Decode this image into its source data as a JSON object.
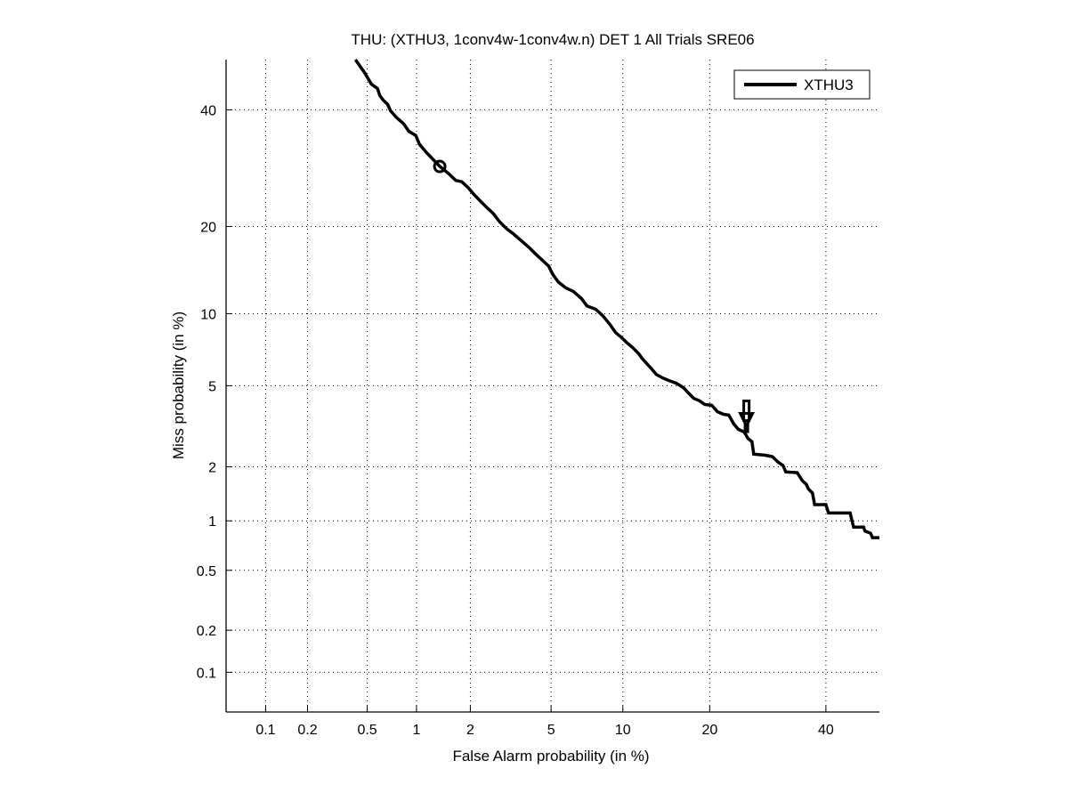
{
  "chart_data": {
    "type": "line",
    "title": "THU: (XTHU3, 1conv4w-1conv4w.n) DET 1 All Trials SRE06",
    "xlabel": "False Alarm probability (in %)",
    "ylabel": "Miss probability (in %)",
    "scale": "normal-deviate",
    "xlim": [
      0.05,
      50.7
    ],
    "ylim": [
      0.05,
      50
    ],
    "grid": true,
    "x_ticks": [
      0.1,
      0.2,
      0.5,
      1,
      2,
      5,
      10,
      20,
      40
    ],
    "x_tick_labels": [
      "0.1",
      "0.2",
      "0.5",
      "1",
      "2",
      "5",
      "10",
      "20",
      "40"
    ],
    "y_ticks": [
      0.1,
      0.2,
      0.5,
      1,
      2,
      5,
      10,
      20,
      40
    ],
    "y_tick_labels": [
      "0.1",
      "0.2",
      "0.5",
      "1",
      "2",
      "5",
      "10",
      "20",
      "40"
    ],
    "legend": {
      "position": "top-right",
      "entries": [
        "XTHU3"
      ]
    },
    "line_color": "#000000",
    "series": [
      {
        "name": "XTHU3",
        "x": [
          0.42,
          0.48,
          0.53,
          0.58,
          0.6,
          0.63,
          0.67,
          0.7,
          0.76,
          0.84,
          0.9,
          0.99,
          1.04,
          1.14,
          1.25,
          1.36,
          1.52,
          1.67,
          1.8,
          1.95,
          2.08,
          2.24,
          2.44,
          2.63,
          2.83,
          3.07,
          3.33,
          3.61,
          3.94,
          4.26,
          4.64,
          4.87,
          5.1,
          5.39,
          5.8,
          6.28,
          6.8,
          7.17,
          7.8,
          8.34,
          8.91,
          9.37,
          9.82,
          10.4,
          10.9,
          11.5,
          11.8,
          12.3,
          12.8,
          13.3,
          14.0,
          14.7,
          15.6,
          16.5,
          17.0,
          17.8,
          18.6,
          19.3,
          20.3,
          21.1,
          22.0,
          22.8,
          23.6,
          24.3,
          25.2,
          25.5,
          25.8,
          26.5,
          26.8,
          28.8,
          30.0,
          31.0,
          31.9,
          32.4,
          34.5,
          35.5,
          36.2,
          36.6,
          37.4,
          37.8,
          40.0,
          40.5,
          44.8,
          45.1,
          45.5,
          47.5,
          47.8,
          48.9,
          49.3,
          50.7
        ],
        "y": [
          50,
          47.4,
          45.1,
          44.2,
          42.8,
          41.9,
          41.1,
          39.8,
          38.5,
          37.3,
          35.9,
          35.1,
          33.5,
          32.0,
          30.7,
          29.5,
          28.3,
          27.1,
          26.9,
          25.9,
          24.9,
          23.9,
          22.8,
          21.9,
          20.7,
          19.7,
          18.95,
          18.1,
          17.2,
          16.3,
          15.4,
          14.9,
          13.9,
          13.1,
          12.5,
          12.1,
          11.4,
          10.7,
          10.4,
          9.82,
          9.06,
          8.43,
          8.1,
          7.64,
          7.32,
          6.89,
          6.6,
          6.26,
          5.94,
          5.62,
          5.42,
          5.28,
          5.13,
          4.9,
          4.68,
          4.38,
          4.26,
          4.1,
          4.06,
          3.79,
          3.68,
          3.65,
          3.3,
          3.11,
          3.02,
          2.93,
          2.81,
          2.7,
          2.33,
          2.3,
          2.26,
          2.12,
          2.03,
          1.88,
          1.86,
          1.68,
          1.61,
          1.52,
          1.44,
          1.24,
          1.24,
          1.11,
          1.11,
          1.02,
          0.92,
          0.92,
          0.87,
          0.845,
          0.795,
          0.795
        ]
      }
    ],
    "markers": [
      {
        "type": "circle",
        "name": "min-dcf-point",
        "x": 1.36,
        "y": 29.5
      },
      {
        "type": "arrow",
        "name": "actual-dcf-point",
        "x": 25.6,
        "y": 3.3
      }
    ]
  }
}
